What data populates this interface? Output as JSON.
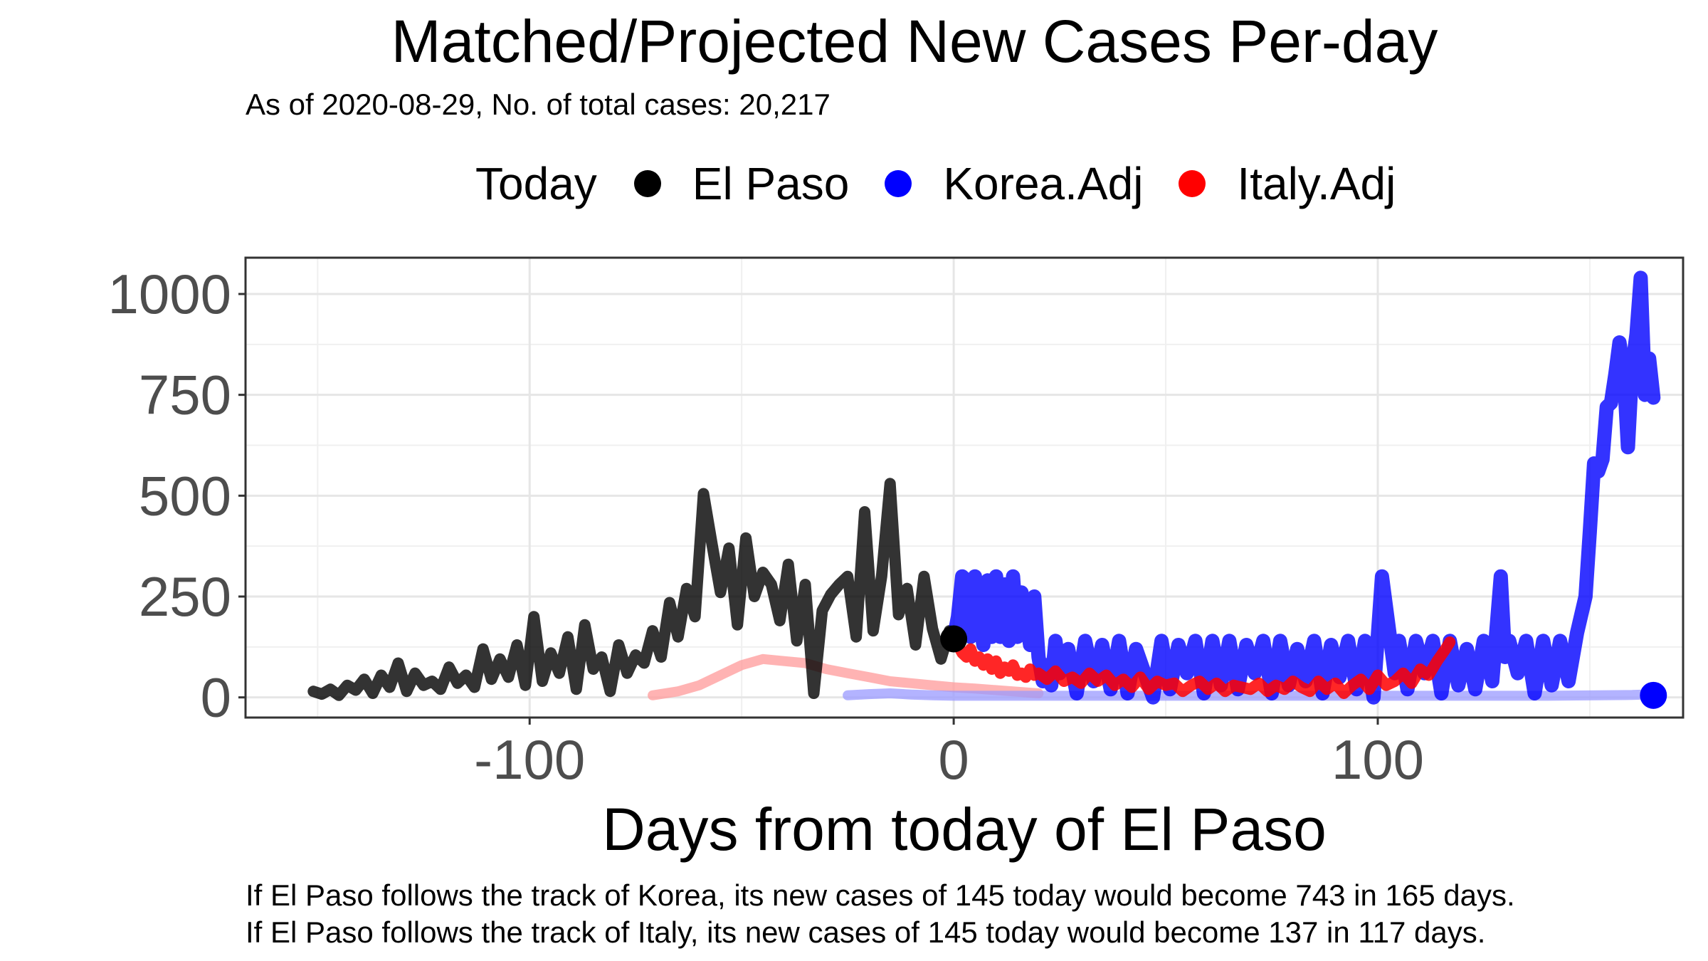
{
  "chart_data": {
    "type": "line",
    "title": "Matched/Projected New Cases Per-day",
    "subtitle": "As of 2020-08-29, No. of total cases: 20,217",
    "xlabel": "Days from today of El Paso",
    "ylabel": "",
    "xlim": [
      -167,
      172
    ],
    "ylim": [
      -50,
      1090
    ],
    "x_ticks": [
      -100,
      0,
      100
    ],
    "y_ticks": [
      0,
      250,
      500,
      750,
      1000
    ],
    "grid": true,
    "legend": {
      "title": "Today",
      "position": "top"
    },
    "series": [
      {
        "name": "El Paso",
        "color": "#000000",
        "x": [
          -151,
          -149,
          -147,
          -145,
          -143,
          -141,
          -139,
          -137,
          -135,
          -133,
          -131,
          -129,
          -127,
          -125,
          -123,
          -121,
          -119,
          -117,
          -115,
          -113,
          -111,
          -109,
          -107,
          -105,
          -103,
          -101,
          -99,
          -97,
          -95,
          -93,
          -91,
          -89,
          -87,
          -85,
          -83,
          -81,
          -79,
          -77,
          -75,
          -73,
          -71,
          -69,
          -67,
          -65,
          -63,
          -61,
          -59,
          -57,
          -55,
          -53,
          -51,
          -49,
          -47,
          -45,
          -43,
          -41,
          -39,
          -37,
          -35,
          -33,
          -31,
          -29,
          -27,
          -25,
          -23,
          -21,
          -19,
          -17,
          -15,
          -13,
          -11,
          -9,
          -7,
          -5,
          -3,
          -1,
          0
        ],
        "y": [
          15,
          8,
          20,
          5,
          30,
          18,
          45,
          10,
          55,
          25,
          85,
          15,
          60,
          30,
          40,
          20,
          75,
          35,
          55,
          25,
          120,
          45,
          95,
          50,
          130,
          30,
          200,
          40,
          110,
          60,
          150,
          20,
          180,
          70,
          100,
          15,
          130,
          60,
          105,
          85,
          165,
          100,
          235,
          150,
          270,
          200,
          505,
          380,
          260,
          370,
          180,
          395,
          250,
          310,
          280,
          190,
          330,
          140,
          280,
          10,
          215,
          255,
          280,
          300,
          150,
          460,
          165,
          300,
          530,
          205,
          270,
          130,
          300,
          170,
          95,
          165,
          145
        ]
      },
      {
        "name": "Korea.Adj",
        "color": "#0000ff",
        "x": [
          0,
          1,
          2,
          3,
          4,
          5,
          6,
          7,
          8,
          9,
          10,
          11,
          12,
          13,
          14,
          15,
          16,
          17,
          18,
          19,
          20,
          21,
          22,
          23,
          24,
          25,
          27,
          29,
          31,
          33,
          35,
          37,
          39,
          41,
          43,
          45,
          47,
          49,
          51,
          53,
          55,
          57,
          59,
          61,
          63,
          65,
          67,
          69,
          71,
          73,
          75,
          77,
          79,
          81,
          83,
          85,
          87,
          89,
          91,
          93,
          95,
          97,
          99,
          101,
          103,
          104,
          105,
          107,
          109,
          111,
          113,
          115,
          117,
          119,
          121,
          123,
          125,
          127,
          129,
          130,
          131,
          133,
          135,
          137,
          139,
          141,
          143,
          145,
          147,
          149,
          150,
          151,
          152,
          153,
          154,
          155,
          156,
          157,
          158,
          159,
          160,
          161,
          162,
          163,
          164,
          165
        ],
        "y": [
          145,
          200,
          300,
          290,
          150,
          300,
          200,
          130,
          290,
          150,
          300,
          150,
          280,
          140,
          300,
          150,
          260,
          200,
          130,
          250,
          100,
          40,
          80,
          30,
          140,
          60,
          120,
          10,
          140,
          40,
          130,
          20,
          140,
          10,
          120,
          60,
          0,
          140,
          20,
          130,
          60,
          140,
          10,
          140,
          30,
          140,
          20,
          130,
          60,
          140,
          10,
          140,
          30,
          120,
          40,
          140,
          10,
          130,
          50,
          140,
          20,
          140,
          0,
          300,
          140,
          60,
          140,
          20,
          140,
          60,
          140,
          10,
          140,
          30,
          120,
          20,
          140,
          40,
          300,
          100,
          140,
          60,
          140,
          10,
          140,
          30,
          140,
          40,
          160,
          250,
          410,
          580,
          560,
          590,
          720,
          730,
          800,
          880,
          810,
          620,
          820,
          900,
          1040,
          750,
          840,
          743
        ]
      },
      {
        "name": "Italy.Adj",
        "color": "#ff0000",
        "x": [
          0,
          1,
          2,
          3,
          4,
          5,
          6,
          7,
          8,
          9,
          10,
          11,
          12,
          13,
          14,
          15,
          16,
          17,
          18,
          19,
          20,
          22,
          24,
          26,
          28,
          30,
          32,
          34,
          36,
          38,
          40,
          42,
          44,
          46,
          48,
          50,
          52,
          54,
          56,
          58,
          60,
          62,
          64,
          66,
          68,
          70,
          72,
          74,
          76,
          78,
          80,
          82,
          84,
          86,
          88,
          90,
          92,
          94,
          96,
          98,
          100,
          102,
          104,
          106,
          108,
          110,
          112,
          114,
          116,
          117
        ],
        "y": [
          145,
          130,
          110,
          100,
          120,
          90,
          100,
          80,
          95,
          70,
          90,
          60,
          75,
          65,
          80,
          55,
          60,
          50,
          70,
          55,
          60,
          45,
          65,
          40,
          50,
          35,
          60,
          40,
          55,
          30,
          45,
          25,
          50,
          20,
          40,
          30,
          35,
          15,
          30,
          40,
          20,
          35,
          15,
          30,
          25,
          20,
          35,
          15,
          30,
          20,
          40,
          25,
          15,
          40,
          20,
          35,
          10,
          30,
          45,
          20,
          55,
          30,
          40,
          60,
          35,
          70,
          55,
          90,
          120,
          137
        ]
      },
      {
        "name": "Italy history (faint)",
        "color": "#ff9999",
        "x": [
          -71,
          -65,
          -60,
          -55,
          -50,
          -45,
          -40,
          -35,
          -30,
          -25,
          -20,
          -15,
          -10,
          -5,
          0,
          5,
          10,
          15,
          20
        ],
        "y": [
          5,
          15,
          30,
          55,
          80,
          95,
          90,
          85,
          70,
          60,
          50,
          40,
          35,
          30,
          25,
          22,
          18,
          14,
          10
        ]
      },
      {
        "name": "Korea history (faint)",
        "color": "#9999ff",
        "x": [
          -25,
          -20,
          -15,
          -10,
          -5,
          0,
          20,
          40,
          60,
          80,
          100,
          120,
          140,
          160,
          166
        ],
        "y": [
          5,
          8,
          10,
          7,
          5,
          4,
          4,
          4,
          4,
          4,
          4,
          4,
          4,
          6,
          8
        ]
      }
    ],
    "today_points": [
      {
        "series": "El Paso",
        "x": 0,
        "y": 145,
        "color": "#000000"
      },
      {
        "series": "Korea.Adj",
        "x": 165,
        "y": 5,
        "color": "#0000ff"
      }
    ],
    "captions": [
      "If El Paso follows the track of Korea, its new cases of 145 today would become 743 in 165 days.",
      "If El Paso follows the track of Italy, its new cases of 145 today would become 137 in 117 days."
    ]
  },
  "legend_items": [
    {
      "label": "El Paso",
      "color": "#000000"
    },
    {
      "label": "Korea.Adj",
      "color": "#0000ff"
    },
    {
      "label": "Italy.Adj",
      "color": "#ff0000"
    }
  ]
}
